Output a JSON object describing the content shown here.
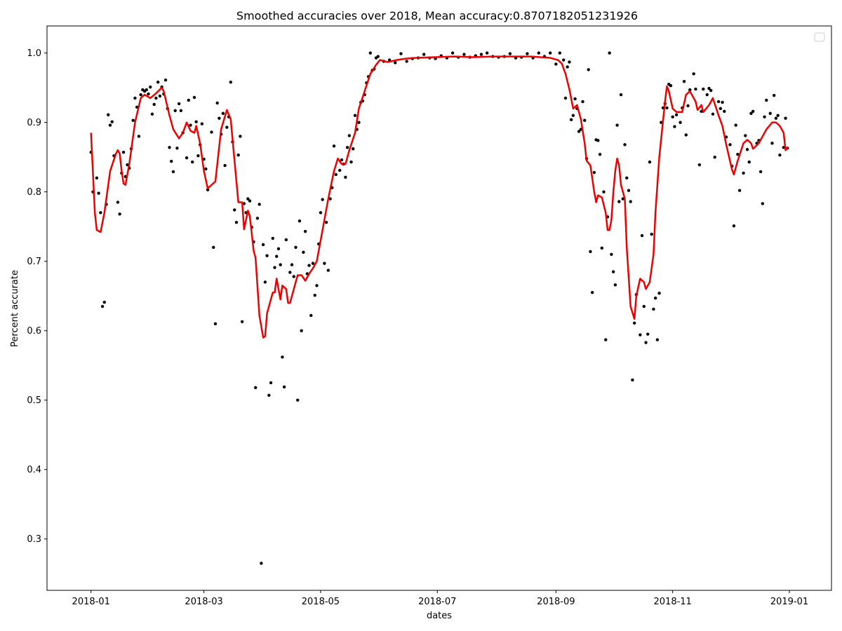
{
  "chart_data": {
    "type": "scatter",
    "title": "Smoothed accuracies over 2018, Mean accuracy:0.8707182051231926",
    "x_label": "dates",
    "y_label": "Percent accurate",
    "xlim": [
      -23,
      387
    ],
    "ylim": [
      0.226,
      1.039
    ],
    "xticks": [
      {
        "value": 0,
        "label": "2018-01"
      },
      {
        "value": 59,
        "label": "2018-03"
      },
      {
        "value": 120,
        "label": "2018-05"
      },
      {
        "value": 181,
        "label": "2018-07"
      },
      {
        "value": 243,
        "label": "2018-09"
      },
      {
        "value": 304,
        "label": "2018-11"
      },
      {
        "value": 365,
        "label": "2019-01"
      }
    ],
    "yticks": [
      0.3,
      0.4,
      0.5,
      0.6,
      0.7,
      0.8,
      0.9,
      {
        "value": 1,
        "label": "1.0"
      }
    ],
    "grid": false,
    "legend": "upper right",
    "series": [
      {
        "type": "scatter",
        "color": "#000000",
        "x": [
          0,
          1,
          3,
          4,
          5,
          6,
          7,
          8,
          9,
          10,
          11,
          12,
          14,
          15,
          16,
          17,
          18,
          19,
          20,
          21,
          22,
          23,
          24,
          25,
          26,
          27,
          28,
          29,
          30,
          31,
          32,
          33,
          34,
          35,
          36,
          37,
          38,
          39,
          40,
          41,
          42,
          43,
          44,
          45,
          46,
          47,
          48,
          50,
          51,
          52,
          53,
          54,
          55,
          56,
          57,
          58,
          59,
          60,
          61,
          63,
          64,
          65,
          66,
          67,
          68,
          69,
          70,
          71,
          72,
          73,
          74,
          75,
          76,
          77,
          78,
          79,
          80,
          81,
          82,
          83,
          84,
          85,
          86,
          87,
          88,
          89,
          90,
          91,
          92,
          93,
          94,
          95,
          96,
          97,
          98,
          99,
          100,
          101,
          102,
          104,
          105,
          106,
          107,
          108,
          109,
          110,
          111,
          112,
          113,
          114,
          115,
          116,
          117,
          118,
          119,
          120,
          121,
          122,
          123,
          124,
          125,
          126,
          127,
          128,
          130,
          131,
          132,
          133,
          134,
          135,
          136,
          137,
          138,
          139,
          140,
          141,
          142,
          143,
          144,
          145,
          146,
          147,
          148,
          149,
          150,
          153,
          156,
          159,
          162,
          165,
          168,
          171,
          174,
          177,
          180,
          183,
          186,
          189,
          192,
          195,
          198,
          201,
          204,
          207,
          210,
          213,
          216,
          219,
          222,
          225,
          228,
          231,
          234,
          237,
          240,
          243,
          245,
          247,
          248,
          249,
          250,
          251,
          252,
          253,
          254,
          255,
          256,
          257,
          258,
          259,
          260,
          261,
          262,
          263,
          264,
          265,
          266,
          267,
          268,
          269,
          270,
          271,
          272,
          273,
          274,
          275,
          276,
          277,
          278,
          279,
          280,
          281,
          282,
          283,
          284,
          285,
          287,
          288,
          289,
          290,
          291,
          292,
          293,
          294,
          295,
          296,
          297,
          298,
          299,
          300,
          301,
          302,
          303,
          304,
          305,
          306,
          308,
          309,
          310,
          311,
          312,
          313,
          315,
          316,
          318,
          319,
          320,
          322,
          323,
          324,
          325,
          326,
          328,
          329,
          330,
          331,
          332,
          334,
          335,
          336,
          337,
          338,
          339,
          341,
          342,
          343,
          344,
          345,
          346,
          348,
          349,
          350,
          351,
          352,
          353,
          355,
          356,
          357,
          358,
          359,
          360,
          362,
          363,
          364
        ],
        "values": [
          0.857,
          0.8,
          0.82,
          0.798,
          0.77,
          0.635,
          0.641,
          0.782,
          0.911,
          0.896,
          0.901,
          0.852,
          0.785,
          0.768,
          0.827,
          0.857,
          0.822,
          0.839,
          0.834,
          0.862,
          0.903,
          0.935,
          0.922,
          0.88,
          0.94,
          0.947,
          0.945,
          0.947,
          0.941,
          0.951,
          0.912,
          0.926,
          0.935,
          0.958,
          0.938,
          0.951,
          0.941,
          0.961,
          0.92,
          0.864,
          0.844,
          0.829,
          0.917,
          0.863,
          0.927,
          0.917,
          0.885,
          0.849,
          0.932,
          0.896,
          0.843,
          0.936,
          0.901,
          0.852,
          0.868,
          0.898,
          0.847,
          0.833,
          0.803,
          0.886,
          0.72,
          0.61,
          0.928,
          0.906,
          0.883,
          0.913,
          0.838,
          0.893,
          0.908,
          0.958,
          0.872,
          0.774,
          0.756,
          0.853,
          0.88,
          0.613,
          0.783,
          0.77,
          0.79,
          0.787,
          0.749,
          0.728,
          0.518,
          0.762,
          0.782,
          0.265,
          0.724,
          0.67,
          0.708,
          0.507,
          0.525,
          0.733,
          0.691,
          0.707,
          0.718,
          0.695,
          0.562,
          0.519,
          0.731,
          0.684,
          0.695,
          0.678,
          0.72,
          0.5,
          0.758,
          0.6,
          0.713,
          0.743,
          0.682,
          0.694,
          0.622,
          0.697,
          0.651,
          0.665,
          0.725,
          0.77,
          0.789,
          0.697,
          0.756,
          0.687,
          0.79,
          0.806,
          0.866,
          0.825,
          0.831,
          0.846,
          0.84,
          0.821,
          0.864,
          0.881,
          0.843,
          0.862,
          0.91,
          0.89,
          0.9,
          0.929,
          0.931,
          0.94,
          0.957,
          0.966,
          1.0,
          0.975,
          0.977,
          0.993,
          0.995,
          0.988,
          0.99,
          0.986,
          0.999,
          0.988,
          0.992,
          0.993,
          0.998,
          0.993,
          0.992,
          0.996,
          0.993,
          1.0,
          0.994,
          0.998,
          0.994,
          0.996,
          0.998,
          1.0,
          0.995,
          0.994,
          0.995,
          0.999,
          0.993,
          0.994,
          0.999,
          0.993,
          1.0,
          0.995,
          1.0,
          0.984,
          1.0,
          0.99,
          0.935,
          0.98,
          0.987,
          0.904,
          0.91,
          0.934,
          0.92,
          0.887,
          0.89,
          0.93,
          0.903,
          0.848,
          0.976,
          0.714,
          0.655,
          0.828,
          0.875,
          0.874,
          0.854,
          0.719,
          0.8,
          0.587,
          0.764,
          1.0,
          0.71,
          0.685,
          0.666,
          0.896,
          0.786,
          0.94,
          0.79,
          0.868,
          0.82,
          0.802,
          0.786,
          0.529,
          0.611,
          0.652,
          0.594,
          0.737,
          0.635,
          0.583,
          0.595,
          0.843,
          0.739,
          0.631,
          0.647,
          0.587,
          0.654,
          0.9,
          0.921,
          0.927,
          0.921,
          0.955,
          0.953,
          0.908,
          0.894,
          0.911,
          0.9,
          0.921,
          0.959,
          0.882,
          0.924,
          0.947,
          0.97,
          0.948,
          0.839,
          0.916,
          0.948,
          0.94,
          0.949,
          0.946,
          0.912,
          0.85,
          0.93,
          0.92,
          0.929,
          0.916,
          0.879,
          0.868,
          0.837,
          0.751,
          0.896,
          0.854,
          0.802,
          0.827,
          0.881,
          0.861,
          0.843,
          0.913,
          0.916,
          0.87,
          0.874,
          0.829,
          0.783,
          0.908,
          0.932,
          0.913,
          0.87,
          0.939,
          0.906,
          0.91,
          0.853,
          0.864,
          0.906,
          0.863
        ]
      },
      {
        "type": "line",
        "color": "#ee0000",
        "x": [
          0,
          2,
          3,
          5,
          7,
          10,
          13,
          14,
          15,
          16,
          17,
          18,
          20,
          23,
          26,
          28,
          31,
          34,
          37,
          38,
          41,
          43,
          46,
          48,
          50,
          52,
          54,
          55,
          57,
          59,
          61,
          63,
          65,
          68,
          71,
          73,
          75,
          77,
          79,
          80,
          82,
          83,
          85,
          86,
          88,
          90,
          91,
          92,
          95,
          96,
          97,
          99,
          100,
          102,
          103,
          104,
          106,
          108,
          110,
          112,
          114,
          116,
          118,
          121,
          124,
          127,
          129,
          131,
          133,
          135,
          138,
          140,
          143,
          146,
          149,
          151,
          155,
          160,
          165,
          170,
          180,
          190,
          200,
          210,
          220,
          230,
          240,
          244,
          246,
          248,
          250,
          252,
          254,
          256,
          258,
          259,
          261,
          263,
          264,
          265,
          267,
          269,
          270,
          271,
          272,
          273,
          274,
          275,
          276,
          277,
          279,
          280,
          282,
          284,
          285,
          287,
          289,
          290,
          292,
          294,
          295,
          297,
          300,
          301,
          302,
          304,
          306,
          309,
          311,
          313,
          316,
          317,
          319,
          320,
          323,
          325,
          328,
          330,
          332,
          335,
          336,
          338,
          341,
          343,
          345,
          346,
          349,
          351,
          353,
          356,
          358,
          360,
          362,
          363,
          364
        ],
        "values": [
          0.885,
          0.77,
          0.745,
          0.742,
          0.77,
          0.83,
          0.855,
          0.86,
          0.855,
          0.83,
          0.812,
          0.81,
          0.84,
          0.9,
          0.935,
          0.94,
          0.935,
          0.942,
          0.95,
          0.945,
          0.91,
          0.89,
          0.877,
          0.885,
          0.9,
          0.888,
          0.885,
          0.895,
          0.87,
          0.83,
          0.805,
          0.81,
          0.815,
          0.89,
          0.918,
          0.905,
          0.845,
          0.785,
          0.785,
          0.746,
          0.773,
          0.765,
          0.715,
          0.705,
          0.622,
          0.59,
          0.592,
          0.625,
          0.655,
          0.655,
          0.675,
          0.645,
          0.665,
          0.66,
          0.64,
          0.64,
          0.66,
          0.68,
          0.68,
          0.672,
          0.682,
          0.69,
          0.7,
          0.745,
          0.79,
          0.83,
          0.848,
          0.84,
          0.84,
          0.86,
          0.885,
          0.92,
          0.945,
          0.97,
          0.983,
          0.99,
          0.987,
          0.99,
          0.992,
          0.993,
          0.994,
          0.995,
          0.994,
          0.995,
          0.995,
          0.995,
          0.993,
          0.99,
          0.985,
          0.97,
          0.948,
          0.92,
          0.925,
          0.905,
          0.87,
          0.845,
          0.838,
          0.8,
          0.785,
          0.795,
          0.792,
          0.77,
          0.745,
          0.745,
          0.76,
          0.8,
          0.83,
          0.848,
          0.838,
          0.81,
          0.79,
          0.72,
          0.635,
          0.617,
          0.65,
          0.675,
          0.67,
          0.66,
          0.67,
          0.71,
          0.77,
          0.85,
          0.93,
          0.952,
          0.945,
          0.92,
          0.915,
          0.915,
          0.94,
          0.945,
          0.93,
          0.918,
          0.925,
          0.915,
          0.925,
          0.935,
          0.91,
          0.895,
          0.868,
          0.832,
          0.825,
          0.845,
          0.87,
          0.875,
          0.87,
          0.862,
          0.87,
          0.88,
          0.89,
          0.9,
          0.9,
          0.895,
          0.885,
          0.86,
          0.865
        ]
      }
    ]
  }
}
